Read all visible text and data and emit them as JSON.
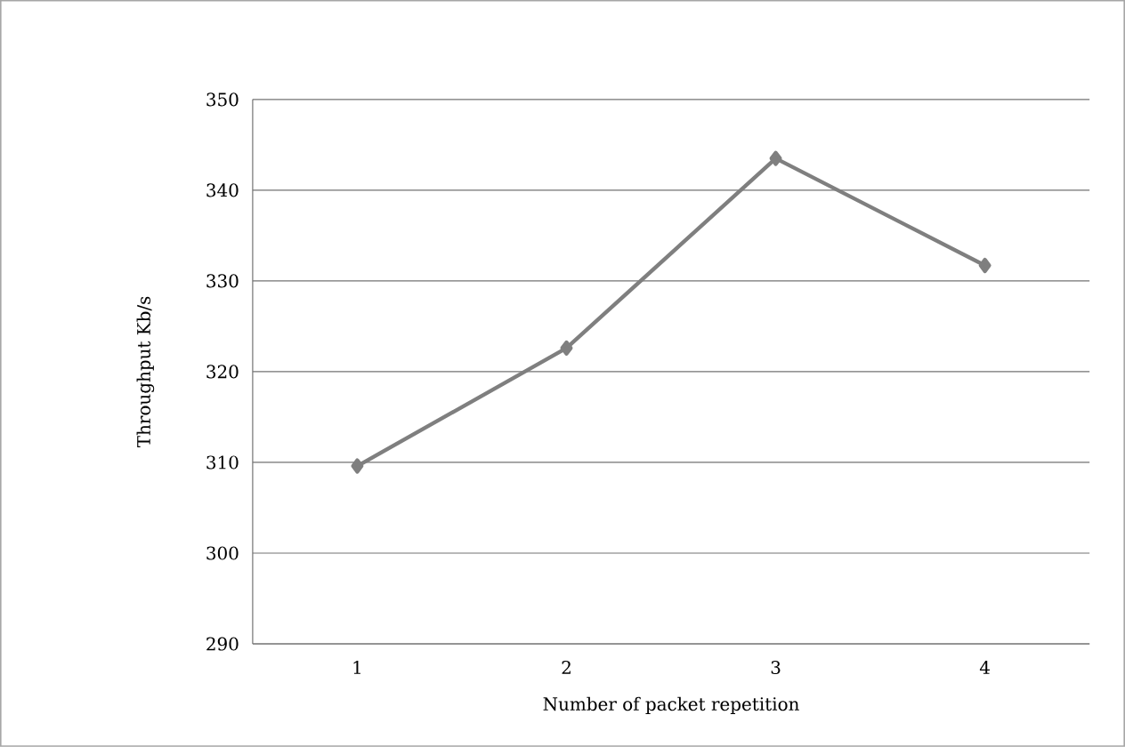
{
  "chart_data": {
    "type": "line",
    "xlabel": "Number of packet repetition",
    "ylabel": "Throughput Kb/s",
    "categories": [
      "1",
      "2",
      "3",
      "4"
    ],
    "series": [
      {
        "color": "#7f7f7f",
        "values": [
          309.6,
          322.6,
          343.5,
          331.7
        ]
      }
    ],
    "ylim": [
      290,
      350
    ],
    "yticks": [
      290,
      300,
      310,
      320,
      330,
      340,
      350
    ],
    "grid": "y",
    "marker": "diamond",
    "line_style": "solid"
  }
}
